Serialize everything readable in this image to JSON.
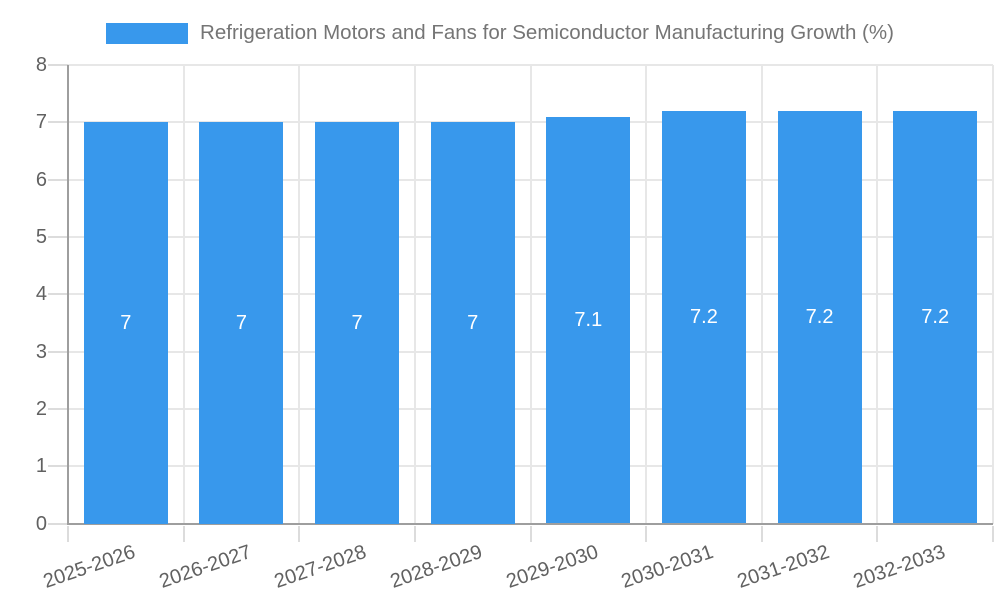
{
  "chart_data": {
    "type": "bar",
    "title": "Refrigeration Motors and Fans for Semiconductor Manufacturing Growth (%)",
    "categories": [
      "2025-2026",
      "2026-2027",
      "2027-2028",
      "2028-2029",
      "2029-2030",
      "2030-2031",
      "2031-2032",
      "2032-2033"
    ],
    "values": [
      7,
      7,
      7,
      7,
      7.1,
      7.2,
      7.2,
      7.2
    ],
    "bar_labels": [
      "7",
      "7",
      "7",
      "7",
      "7.1",
      "7.2",
      "7.2",
      "7.2"
    ],
    "xlabel": "",
    "ylabel": "",
    "ylim": [
      0,
      8
    ],
    "yticks": [
      0,
      1,
      2,
      3,
      4,
      5,
      6,
      7,
      8
    ],
    "grid": true,
    "legend_position": "top",
    "colors": {
      "bar": "#3898ec",
      "bar_label": "#ffffff",
      "axis_label": "#616161",
      "title_text": "#757575",
      "gridline": "#e7e7e7",
      "tick": "#dcdcdc",
      "axis_line": "#9e9e9e"
    }
  }
}
